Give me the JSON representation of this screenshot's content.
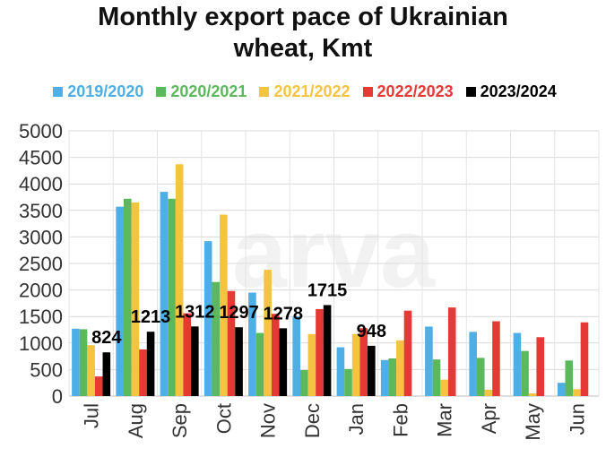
{
  "chart_data": {
    "type": "bar",
    "title": "Monthly export pace of Ukrainian\nwheat, Kmt",
    "title_lines": [
      "Monthly export pace of Ukrainian",
      "wheat, Kmt"
    ],
    "categories": [
      "Jul",
      "Aug",
      "Sep",
      "Oct",
      "Nov",
      "Dec",
      "Jan",
      "Feb",
      "Mar",
      "Apr",
      "May",
      "Jun"
    ],
    "ylim": [
      0,
      5000
    ],
    "yticks": [
      0,
      500,
      1000,
      1500,
      2000,
      2500,
      3000,
      3500,
      4000,
      4500,
      5000
    ],
    "grid": true,
    "legend_position": "top",
    "series": [
      {
        "name": "2019/2020",
        "color": "#4eaee6",
        "values": [
          1270,
          3570,
          3850,
          2920,
          1950,
          1500,
          920,
          680,
          1310,
          1210,
          1190,
          250
        ]
      },
      {
        "name": "2020/2021",
        "color": "#5cb85c",
        "values": [
          1260,
          3720,
          3720,
          2150,
          1190,
          490,
          510,
          710,
          690,
          720,
          850,
          670
        ]
      },
      {
        "name": "2021/2022",
        "color": "#f5c342",
        "values": [
          960,
          3650,
          4370,
          3420,
          2380,
          1170,
          1170,
          1050,
          310,
          120,
          50,
          130
        ]
      },
      {
        "name": "2022/2023",
        "color": "#e53935",
        "values": [
          370,
          880,
          1560,
          1980,
          1550,
          1640,
          1280,
          1610,
          1670,
          1410,
          1110,
          1390
        ]
      },
      {
        "name": "2023/2024",
        "color": "#000000",
        "values": [
          824,
          1213,
          1312,
          1297,
          1278,
          1715,
          948,
          null,
          null,
          null,
          null,
          null
        ]
      }
    ],
    "data_labels": [
      {
        "category": "Jul",
        "text": "824"
      },
      {
        "category": "Aug",
        "text": "1213"
      },
      {
        "category": "Sep",
        "text": "1312"
      },
      {
        "category": "Oct",
        "text": "1297"
      },
      {
        "category": "Nov",
        "text": "1278"
      },
      {
        "category": "Dec",
        "text": "1715"
      },
      {
        "category": "Jan",
        "text": "948"
      }
    ]
  },
  "watermark": "arva"
}
